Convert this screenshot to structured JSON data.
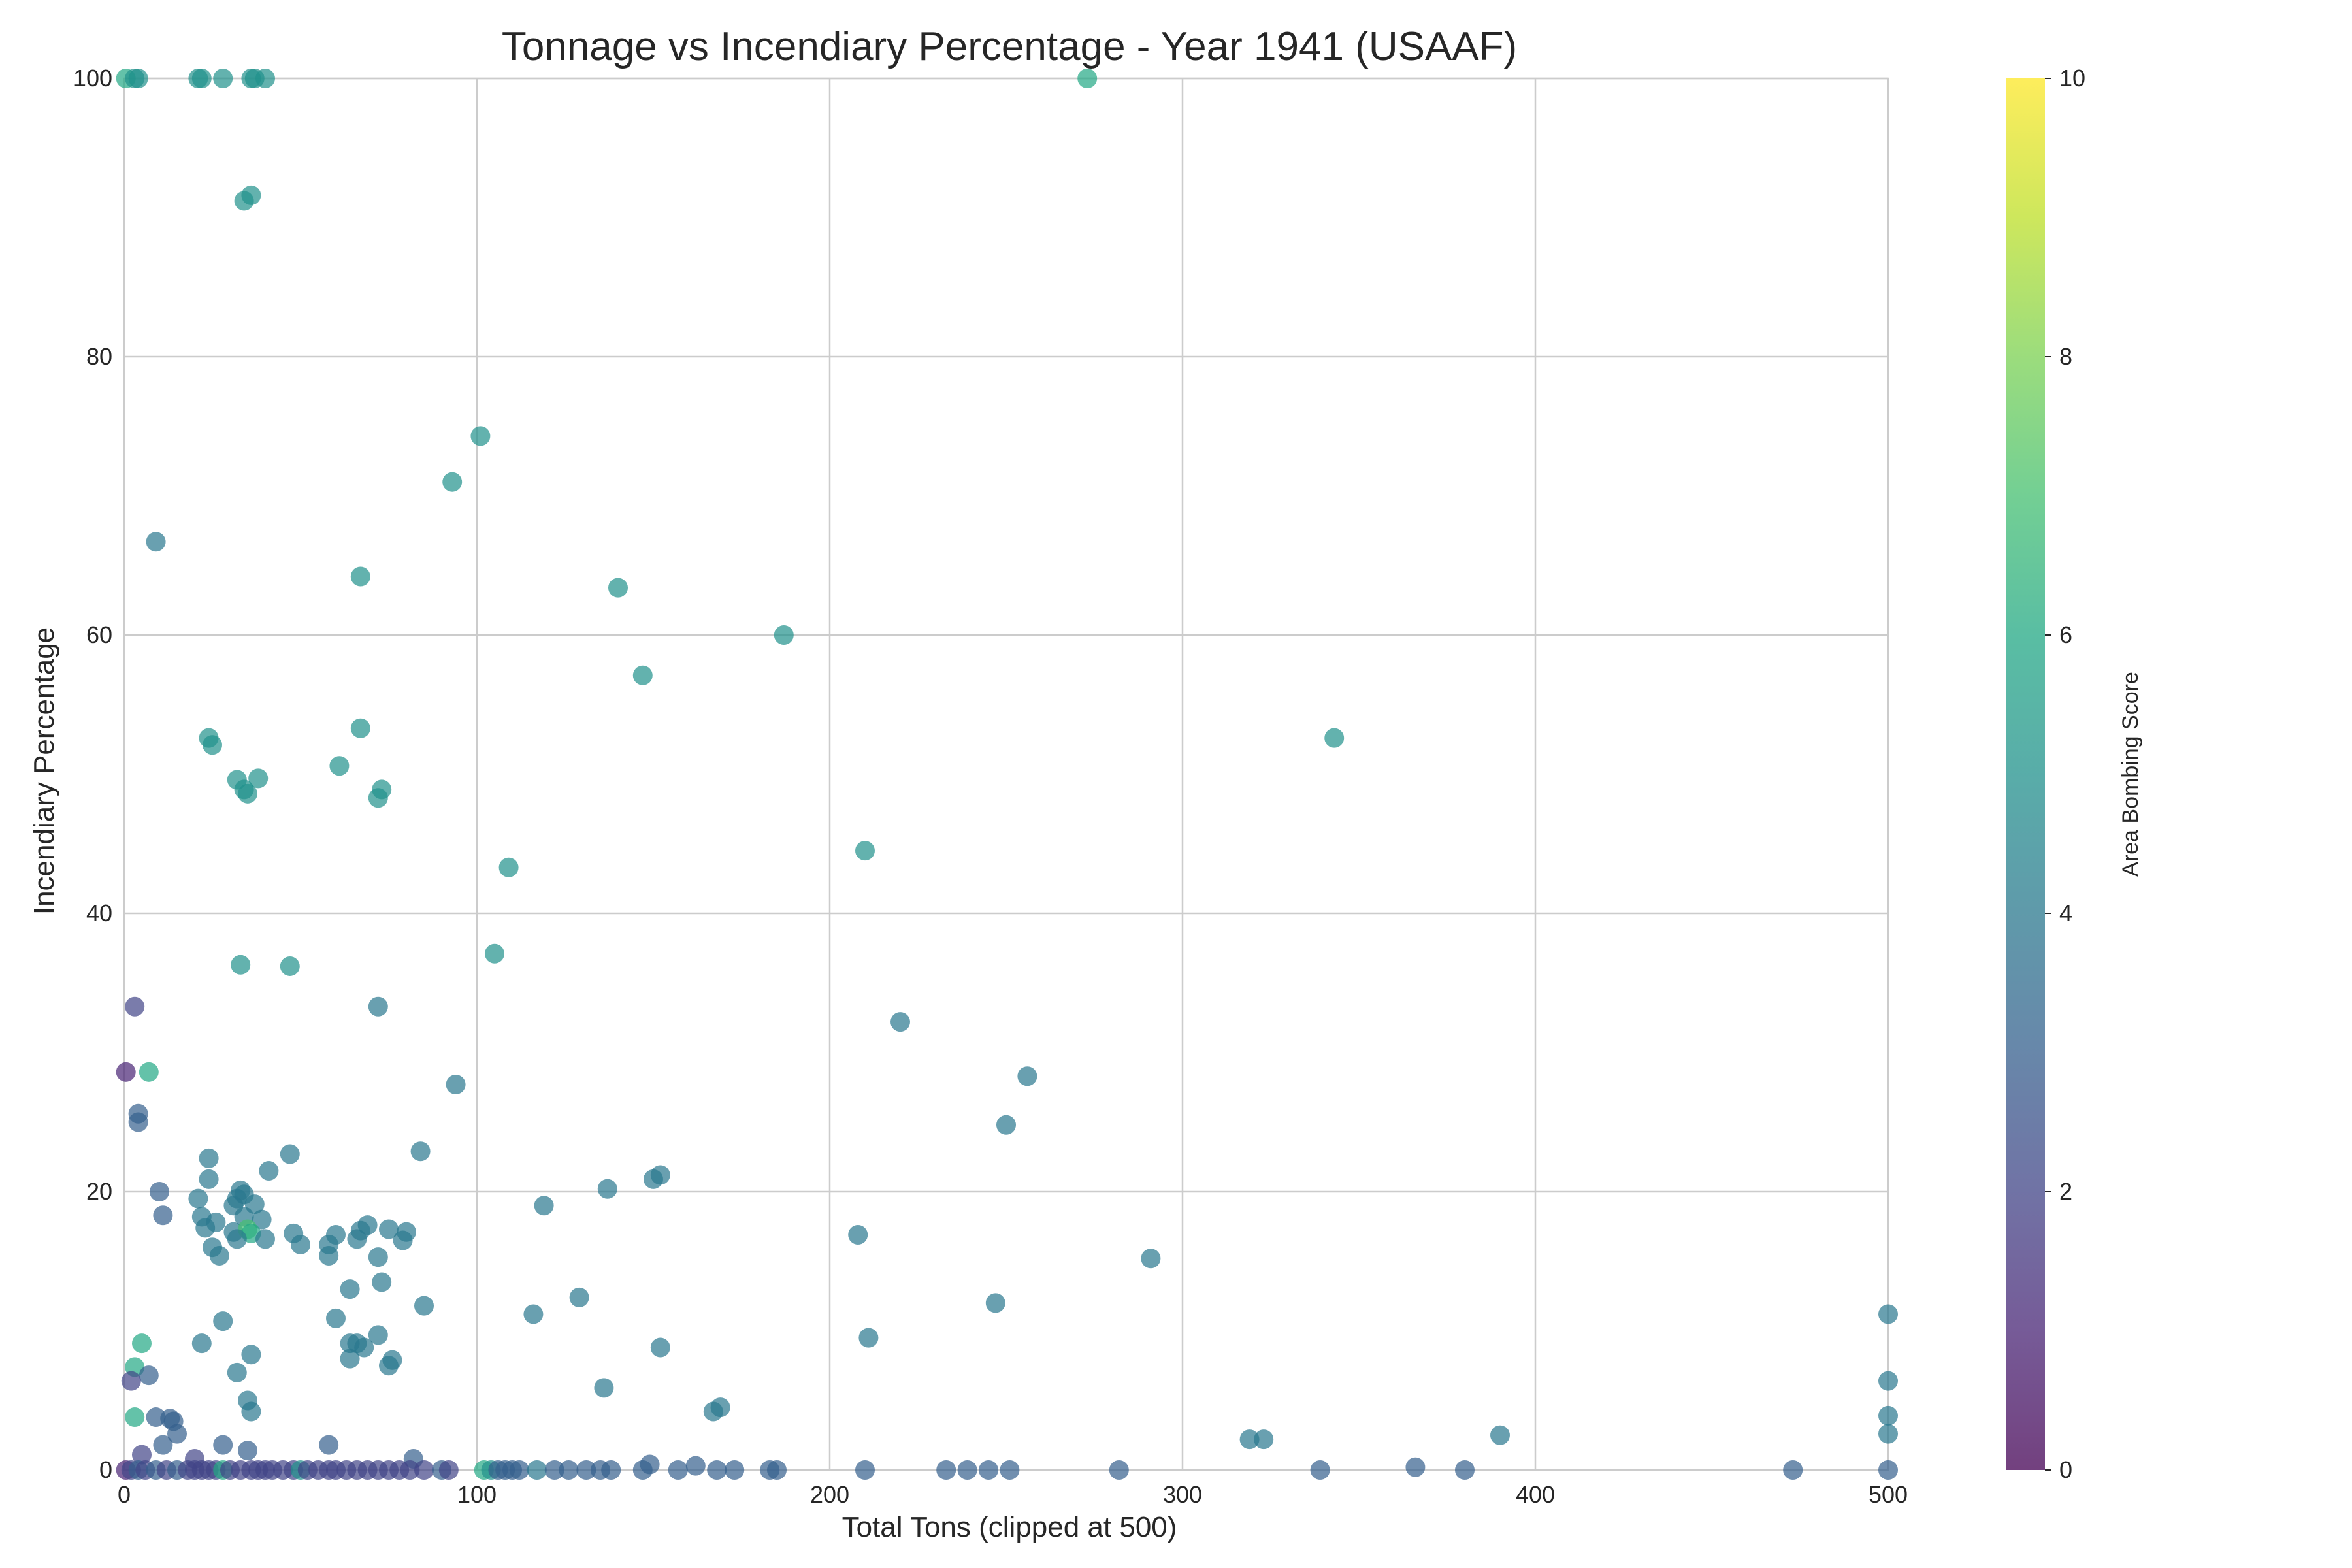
{
  "chart_data": {
    "type": "scatter",
    "title": "Tonnage vs Incendiary Percentage - Year 1941 (USAAF)",
    "xlabel": "Total Tons (clipped at 500)",
    "ylabel": "Incendiary Percentage",
    "xlim": [
      0,
      500
    ],
    "ylim": [
      0,
      100
    ],
    "xticks": [
      0,
      100,
      200,
      300,
      400,
      500
    ],
    "yticks": [
      0,
      20,
      40,
      60,
      80,
      100
    ],
    "grid": true,
    "colorbar": {
      "label": "Area Bombing Score",
      "range": [
        0,
        10
      ],
      "ticks": [
        0,
        2,
        4,
        6,
        8,
        10
      ],
      "colormap": [
        "#440154",
        "#3b528b",
        "#21918c",
        "#5ec962",
        "#fde725"
      ]
    },
    "points": [
      [
        0.5,
        100,
        6
      ],
      [
        3,
        100,
        5
      ],
      [
        4,
        100,
        5
      ],
      [
        21,
        100,
        5
      ],
      [
        22,
        100,
        5
      ],
      [
        28,
        100,
        5
      ],
      [
        36,
        100,
        5
      ],
      [
        37,
        100,
        5
      ],
      [
        40,
        100,
        5
      ],
      [
        273,
        100,
        6
      ],
      [
        36,
        91.6,
        5
      ],
      [
        34,
        91.2,
        5
      ],
      [
        101,
        74.3,
        5
      ],
      [
        93,
        71,
        5
      ],
      [
        9,
        66.7,
        4
      ],
      [
        67,
        64.2,
        5
      ],
      [
        140,
        63.4,
        5
      ],
      [
        187,
        60,
        5
      ],
      [
        147,
        57.1,
        5
      ],
      [
        343,
        52.6,
        5
      ],
      [
        24,
        52.6,
        5
      ],
      [
        25,
        52.1,
        5
      ],
      [
        67,
        53.3,
        5
      ],
      [
        32,
        49.6,
        5
      ],
      [
        38,
        49.7,
        5
      ],
      [
        34,
        48.9,
        5
      ],
      [
        35,
        48.6,
        5
      ],
      [
        61,
        50.6,
        5
      ],
      [
        73,
        48.9,
        5
      ],
      [
        72,
        48.3,
        5
      ],
      [
        210,
        44.5,
        5
      ],
      [
        109,
        43.3,
        5
      ],
      [
        105,
        37.1,
        5
      ],
      [
        33,
        36.3,
        5
      ],
      [
        47,
        36.2,
        5
      ],
      [
        3,
        33.3,
        2
      ],
      [
        72,
        33.3,
        4
      ],
      [
        220,
        32.2,
        4
      ],
      [
        0.5,
        28.6,
        1
      ],
      [
        7,
        28.6,
        6
      ],
      [
        256,
        28.3,
        4
      ],
      [
        94,
        27.7,
        4
      ],
      [
        4,
        25.6,
        3
      ],
      [
        4,
        25,
        3
      ],
      [
        250,
        24.8,
        4
      ],
      [
        84,
        22.9,
        4
      ],
      [
        24,
        22.4,
        4
      ],
      [
        47,
        22.7,
        4
      ],
      [
        41,
        21.5,
        4
      ],
      [
        24,
        20.9,
        4
      ],
      [
        152,
        21.2,
        4
      ],
      [
        150,
        20.9,
        4
      ],
      [
        137,
        20.2,
        4
      ],
      [
        10,
        20,
        3
      ],
      [
        21,
        19.5,
        4
      ],
      [
        33,
        20.1,
        4
      ],
      [
        34,
        19.8,
        4
      ],
      [
        32,
        19.5,
        4
      ],
      [
        31,
        19,
        4
      ],
      [
        37,
        19.1,
        4
      ],
      [
        119,
        19,
        4
      ],
      [
        11,
        18.3,
        3
      ],
      [
        22,
        18.2,
        4
      ],
      [
        34,
        18.2,
        4
      ],
      [
        39,
        18,
        4
      ],
      [
        23,
        17.4,
        4
      ],
      [
        26,
        17.8,
        4
      ],
      [
        75,
        17.3,
        4
      ],
      [
        80,
        17.1,
        4
      ],
      [
        69,
        17.6,
        4
      ],
      [
        67,
        17.2,
        4
      ],
      [
        48,
        17,
        4
      ],
      [
        31,
        17.1,
        4
      ],
      [
        35,
        17.3,
        7
      ],
      [
        36,
        17,
        6
      ],
      [
        208,
        16.9,
        4
      ],
      [
        60,
        16.9,
        4
      ],
      [
        79,
        16.5,
        4
      ],
      [
        66,
        16.6,
        4
      ],
      [
        40,
        16.6,
        4
      ],
      [
        32,
        16.6,
        4
      ],
      [
        58,
        16.2,
        4
      ],
      [
        50,
        16.2,
        4
      ],
      [
        25,
        16,
        4
      ],
      [
        58,
        15.4,
        4
      ],
      [
        27,
        15.4,
        4
      ],
      [
        72,
        15.3,
        4
      ],
      [
        291,
        15.2,
        4
      ],
      [
        73,
        13.5,
        4
      ],
      [
        64,
        13,
        4
      ],
      [
        129,
        12.4,
        4
      ],
      [
        247,
        12,
        4
      ],
      [
        85,
        11.8,
        4
      ],
      [
        116,
        11.2,
        4
      ],
      [
        500,
        11.2,
        4
      ],
      [
        60,
        10.9,
        4
      ],
      [
        28,
        10.7,
        4
      ],
      [
        72,
        9.7,
        4
      ],
      [
        211,
        9.5,
        4
      ],
      [
        5,
        9.1,
        6
      ],
      [
        22,
        9.1,
        4
      ],
      [
        64,
        9.1,
        4
      ],
      [
        66,
        9.1,
        4
      ],
      [
        152,
        8.8,
        4
      ],
      [
        68,
        8.8,
        4
      ],
      [
        36,
        8.3,
        4
      ],
      [
        64,
        8,
        4
      ],
      [
        76,
        7.9,
        4
      ],
      [
        75,
        7.5,
        4
      ],
      [
        3,
        7.4,
        6
      ],
      [
        32,
        7,
        4
      ],
      [
        7,
        6.8,
        3
      ],
      [
        2,
        6.4,
        2
      ],
      [
        500,
        6.4,
        4
      ],
      [
        136,
        5.9,
        4
      ],
      [
        35,
        5,
        4
      ],
      [
        169,
        4.5,
        4
      ],
      [
        167,
        4.2,
        4
      ],
      [
        36,
        4.2,
        4
      ],
      [
        500,
        3.9,
        4
      ],
      [
        3,
        3.8,
        6
      ],
      [
        9,
        3.8,
        3
      ],
      [
        13,
        3.7,
        3
      ],
      [
        14,
        3.5,
        3
      ],
      [
        15,
        2.6,
        3
      ],
      [
        500,
        2.6,
        4
      ],
      [
        390,
        2.5,
        4
      ],
      [
        319,
        2.2,
        4
      ],
      [
        323,
        2.2,
        4
      ],
      [
        58,
        1.8,
        3
      ],
      [
        28,
        1.8,
        3
      ],
      [
        11,
        1.8,
        3
      ],
      [
        35,
        1.4,
        3
      ],
      [
        82,
        0.8,
        3
      ],
      [
        20,
        0.8,
        2
      ],
      [
        5,
        1.1,
        2
      ],
      [
        0.5,
        0,
        1
      ],
      [
        2,
        0,
        2
      ],
      [
        4,
        0,
        3
      ],
      [
        6,
        0,
        2
      ],
      [
        9,
        0,
        3
      ],
      [
        12,
        0,
        2
      ],
      [
        15,
        0,
        3
      ],
      [
        18,
        0,
        2
      ],
      [
        20,
        0,
        2
      ],
      [
        22,
        0,
        2
      ],
      [
        24,
        0,
        2
      ],
      [
        26,
        0,
        2
      ],
      [
        28,
        0,
        6
      ],
      [
        30,
        0,
        2
      ],
      [
        33,
        0,
        2
      ],
      [
        36,
        0,
        2
      ],
      [
        38,
        0,
        2
      ],
      [
        40,
        0,
        2
      ],
      [
        42,
        0,
        2
      ],
      [
        45,
        0,
        2
      ],
      [
        48,
        0,
        2
      ],
      [
        50,
        0,
        5
      ],
      [
        52,
        0,
        2
      ],
      [
        55,
        0,
        2
      ],
      [
        58,
        0,
        2
      ],
      [
        60,
        0,
        2
      ],
      [
        63,
        0,
        2
      ],
      [
        66,
        0,
        2
      ],
      [
        69,
        0,
        2
      ],
      [
        72,
        0,
        2
      ],
      [
        75,
        0,
        2
      ],
      [
        78,
        0,
        2
      ],
      [
        81,
        0,
        2
      ],
      [
        85,
        0,
        2
      ],
      [
        90,
        0,
        3
      ],
      [
        92,
        0,
        2
      ],
      [
        102,
        0,
        6
      ],
      [
        104,
        0,
        5
      ],
      [
        106,
        0,
        3
      ],
      [
        108,
        0,
        3
      ],
      [
        110,
        0,
        3
      ],
      [
        112,
        0,
        3
      ],
      [
        117,
        0,
        4
      ],
      [
        122,
        0,
        3
      ],
      [
        126,
        0,
        3
      ],
      [
        131,
        0,
        3
      ],
      [
        135,
        0,
        3
      ],
      [
        138,
        0,
        3
      ],
      [
        147,
        0,
        3
      ],
      [
        149,
        0.4,
        3
      ],
      [
        157,
        0,
        3
      ],
      [
        162,
        0.3,
        3
      ],
      [
        168,
        0,
        3
      ],
      [
        173,
        0,
        3
      ],
      [
        183,
        0,
        3
      ],
      [
        185,
        0,
        3
      ],
      [
        210,
        0,
        3
      ],
      [
        233,
        0,
        3
      ],
      [
        239,
        0,
        3
      ],
      [
        245,
        0,
        3
      ],
      [
        251,
        0,
        3
      ],
      [
        282,
        0,
        3
      ],
      [
        339,
        0,
        3
      ],
      [
        366,
        0.2,
        3
      ],
      [
        380,
        0,
        3
      ],
      [
        473,
        0,
        3
      ],
      [
        500,
        0,
        3
      ]
    ]
  }
}
